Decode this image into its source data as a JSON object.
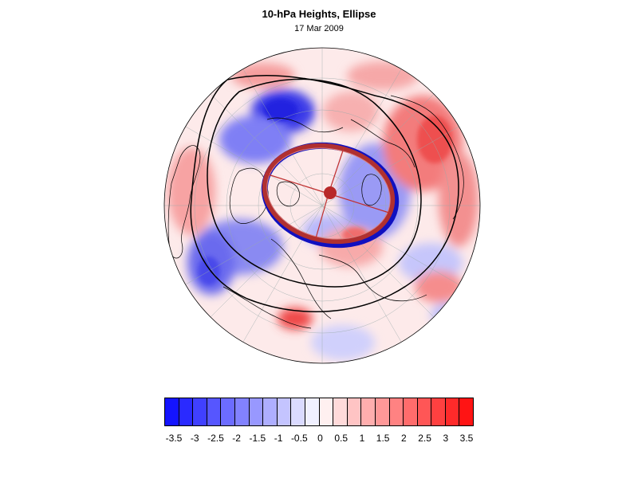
{
  "header": {
    "title": "10-hPa Heights, Ellipse",
    "date": "17 Mar 2009"
  },
  "map": {
    "projection": "polar stereographic, north pole",
    "variable": "10-hPa height anomaly",
    "ellipse_color": "#b03030",
    "ellipse_outline_color": "#1010c0",
    "center_marker_color": "#c03030"
  },
  "colorbar": {
    "labels": [
      "-3.5",
      "-3",
      "-2.5",
      "-2",
      "-1.5",
      "-1",
      "-0.5",
      "0",
      "0.5",
      "1",
      "1.5",
      "2",
      "2.5",
      "3",
      "3.5"
    ],
    "colors": [
      "#1414ff",
      "#2a2aff",
      "#4040ff",
      "#5656ff",
      "#6c6cff",
      "#8282ff",
      "#9898ff",
      "#aeaeff",
      "#c4c4ff",
      "#dadaff",
      "#f0f0ff",
      "#fff0f0",
      "#ffdada",
      "#ffc4c4",
      "#ffaeae",
      "#ff9898",
      "#ff8282",
      "#ff6c6c",
      "#ff5656",
      "#ff4040",
      "#ff2a2a",
      "#ff1414"
    ]
  }
}
